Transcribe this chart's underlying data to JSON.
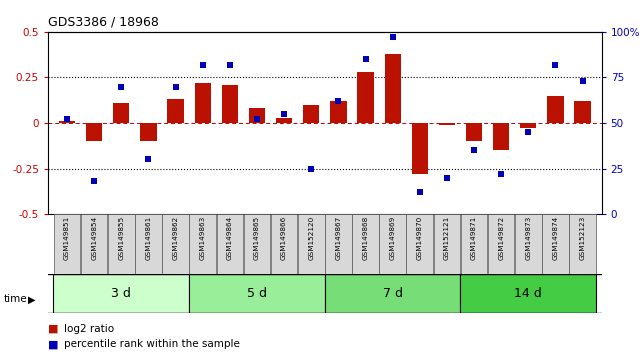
{
  "title": "GDS3386 / 18968",
  "samples": [
    "GSM149851",
    "GSM149854",
    "GSM149855",
    "GSM149861",
    "GSM149862",
    "GSM149863",
    "GSM149864",
    "GSM149865",
    "GSM149866",
    "GSM152120",
    "GSM149867",
    "GSM149868",
    "GSM149869",
    "GSM149870",
    "GSM152121",
    "GSM149871",
    "GSM149872",
    "GSM149873",
    "GSM149874",
    "GSM152123"
  ],
  "log2_ratio": [
    0.01,
    -0.1,
    0.11,
    -0.1,
    0.13,
    0.22,
    0.21,
    0.08,
    0.03,
    0.1,
    0.12,
    0.28,
    0.38,
    -0.28,
    -0.01,
    -0.1,
    -0.15,
    -0.03,
    0.15,
    0.12
  ],
  "percentile": [
    52,
    18,
    70,
    30,
    70,
    82,
    82,
    52,
    55,
    25,
    62,
    85,
    97,
    12,
    20,
    35,
    22,
    45,
    82,
    73
  ],
  "groups": [
    {
      "label": "3 d",
      "start": 0,
      "end": 5,
      "color": "#ccffcc"
    },
    {
      "label": "5 d",
      "start": 5,
      "end": 10,
      "color": "#99ee99"
    },
    {
      "label": "7 d",
      "start": 10,
      "end": 15,
      "color": "#77dd77"
    },
    {
      "label": "14 d",
      "start": 15,
      "end": 20,
      "color": "#44cc44"
    }
  ],
  "bar_color": "#bb1100",
  "dot_color": "#0000bb",
  "zero_line_color": "#cc0000",
  "bg_color": "#ffffff",
  "ylim_left": [
    -0.5,
    0.5
  ],
  "ylim_right": [
    0,
    100
  ],
  "yticks_left": [
    -0.5,
    -0.25,
    0.0,
    0.25,
    0.5
  ],
  "yticks_right": [
    0,
    25,
    50,
    75,
    100
  ],
  "hlines": [
    -0.25,
    0.25
  ],
  "bar_width": 0.6,
  "dot_size": 5
}
